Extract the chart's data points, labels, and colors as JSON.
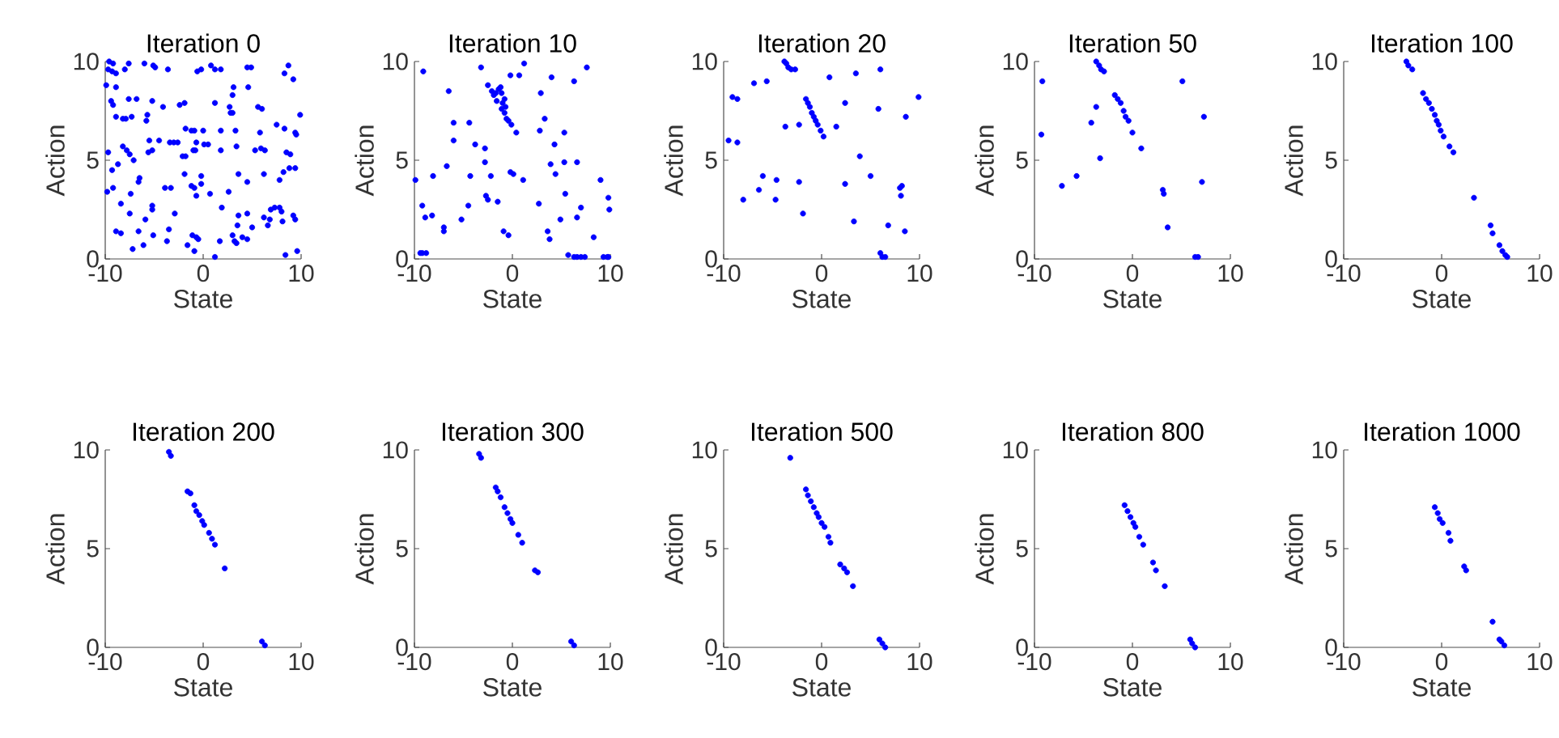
{
  "chart_data": [
    {
      "type": "scatter",
      "title": "Iteration 0",
      "xlabel": "State",
      "ylabel": "Action",
      "color": "#0000ff",
      "marker": "circle",
      "xlim": [
        -10,
        10
      ],
      "ylim": [
        0,
        10
      ],
      "xticks": [
        -10,
        0,
        10
      ],
      "yticks": [
        0,
        5,
        10
      ],
      "x": [
        -9.6,
        -9.2,
        -9.7,
        -9.3,
        -8.9,
        -8.0,
        -7.6,
        -6.0,
        -5.1,
        -4.9,
        -3.6,
        -0.6,
        -0.2,
        0.8,
        1.2,
        1.8,
        4.5,
        4.9,
        8.3,
        8.7,
        9.2,
        -9.9,
        -8.9,
        3.1,
        4.6,
        -9.4,
        -9.2,
        -7.6,
        -6.8,
        -5.2,
        -4.1,
        -2.4,
        -1.9,
        1.2,
        2.7,
        2.8,
        3.0,
        5.6,
        6.0,
        7.5,
        8.3,
        9.9,
        -8.9,
        -8.2,
        -7.9,
        -7.3,
        -5.8,
        -5.7,
        3.0,
        -1.8,
        -1.2,
        -0.9,
        0,
        1.8,
        3.3,
        5.8,
        9.4,
        9.5,
        -5.5,
        -4.5,
        -3.4,
        -3.0,
        -2.6,
        -0.7,
        0.1,
        0.5,
        1.8,
        -0.8,
        -1.0,
        -2.1,
        -1.8,
        3.4,
        5.3,
        5.9,
        6.3,
        8.5,
        8.9,
        -9.7,
        -8.2,
        -7.8,
        -7.5,
        -7.1,
        -5.6,
        -5.2,
        -8.7,
        -9.3,
        8.8,
        9.4,
        -9.8,
        -9.2,
        -7.4,
        -6.5,
        -6.6,
        -3.9,
        -3.3,
        -1.9,
        -1.2,
        -0.9,
        -0.7,
        -0.2,
        -0.2,
        0.7,
        2.6,
        3.6,
        4.5,
        6.2,
        7.8,
        8.2,
        -8.4,
        -7.5,
        -5.9,
        -5.2,
        -5.2,
        -2.9,
        1.9,
        3.6,
        4.5,
        5.0,
        6.2,
        6.8,
        7.3,
        7.8,
        8.0,
        8.1,
        9.2,
        9.4,
        -8.9,
        -8.4,
        -6.6,
        -3.5,
        -1.1,
        -0.7,
        -0.5,
        3.0,
        3.5,
        4.0,
        4.5,
        3.2,
        3.4,
        -3.7,
        -5.1,
        -7.2,
        -6.1,
        -1.6,
        -0.9,
        1.2,
        8.4,
        9.6,
        1.7,
        6.6,
        6.9
      ],
      "values": [
        10.0,
        9.9,
        9.6,
        9.5,
        9.4,
        9.6,
        9.9,
        9.9,
        9.8,
        9.7,
        9.6,
        9.5,
        9.6,
        9.8,
        9.6,
        9.6,
        9.7,
        9.7,
        9.4,
        9.8,
        9.1,
        8.8,
        8.7,
        8.7,
        8.7,
        8.0,
        7.8,
        8.1,
        8.1,
        8.0,
        7.7,
        7.8,
        7.9,
        7.9,
        7.7,
        7.4,
        8.3,
        7.7,
        7.6,
        6.8,
        6.6,
        7.3,
        7.2,
        7.1,
        7.1,
        7.2,
        7.0,
        7.3,
        7.4,
        6.6,
        6.5,
        6.5,
        6.5,
        6.5,
        6.5,
        6.4,
        6.4,
        6.3,
        6.0,
        6.0,
        5.9,
        5.9,
        5.9,
        5.9,
        5.8,
        5.8,
        5.5,
        5.5,
        5.5,
        5.2,
        5.2,
        5.7,
        5.5,
        5.6,
        5.5,
        5.4,
        5.3,
        5.4,
        5.7,
        5.5,
        5.3,
        5.0,
        5.4,
        5.5,
        4.8,
        4.5,
        4.6,
        4.6,
        3.4,
        3.6,
        3.3,
        4.1,
        3.9,
        3.6,
        3.6,
        4.3,
        3.7,
        3.6,
        3.2,
        3.8,
        4.2,
        3.3,
        3.4,
        4.3,
        3.9,
        4.3,
        4.0,
        4.4,
        2.8,
        2.3,
        2.0,
        2.7,
        2.5,
        2.3,
        2.6,
        2.2,
        2.3,
        1.6,
        2.1,
        2.0,
        2.6,
        2.6,
        2.4,
        1.9,
        2.2,
        2.0,
        1.4,
        1.3,
        1.4,
        1.5,
        1.2,
        1.1,
        1.0,
        1.2,
        1.7,
        1.1,
        1.0,
        0.9,
        0.8,
        0.9,
        1.2,
        0.5,
        0.7,
        0.7,
        0.4,
        0.1,
        0.2,
        0.4,
        0.9,
        1.7,
        2.5
      ]
    },
    {
      "type": "scatter",
      "title": "Iteration 10",
      "xlabel": "State",
      "ylabel": "Action",
      "color": "#0000ff",
      "marker": "circle",
      "xlim": [
        -10,
        10
      ],
      "ylim": [
        0,
        10
      ],
      "xticks": [
        -10,
        0,
        10
      ],
      "yticks": [
        0,
        5,
        10
      ],
      "x": [
        -9.1,
        -9.2,
        -8.8,
        -9.4,
        -9.9,
        -9.2,
        -8.9,
        -8.2,
        -8.1,
        -7.0,
        -7.0,
        -6.7,
        -6.5,
        -6.0,
        -6.0,
        -5.2,
        -4.4,
        -4.3,
        -4.5,
        -3.8,
        -3.2,
        -2.8,
        -2.8,
        -2.7,
        -2.5,
        -2.2,
        -1.5,
        -0.9,
        -0.4,
        -0.2,
        0.1,
        -0.2,
        0.4,
        1.1,
        1.2,
        0.7,
        -2.5,
        -2.1,
        -1.9,
        -1.6,
        -1.4,
        -1.2,
        -1.1,
        -1.0,
        -0.8,
        -1.1,
        -0.8,
        -0.6,
        -0.4,
        -0.1,
        -1.7,
        -0.7,
        2.9,
        3.3,
        2.8,
        4.0,
        4.3,
        2.7,
        3.6,
        3.8,
        3.9,
        4.4,
        4.9,
        5.3,
        5.3,
        5.4,
        6.3,
        6.6,
        6.6,
        7.0,
        7.6,
        8.3,
        9.0,
        9.8,
        9.9,
        5.7,
        6.3,
        6.6,
        7.0,
        7.4,
        9.3,
        9.7,
        9.8
      ],
      "values": [
        9.5,
        0.3,
        0.3,
        0.3,
        4.0,
        2.7,
        2.1,
        2.2,
        4.2,
        1.6,
        1.4,
        4.7,
        8.5,
        6.9,
        6.0,
        2.0,
        6.9,
        4.2,
        2.7,
        5.8,
        9.7,
        5.6,
        4.9,
        3.2,
        3.0,
        4.2,
        2.9,
        1.4,
        1.2,
        4.4,
        4.3,
        9.3,
        6.4,
        4.0,
        9.9,
        9.3,
        8.8,
        8.5,
        8.3,
        8.0,
        8.6,
        8.7,
        8.4,
        7.9,
        8.1,
        7.6,
        7.4,
        7.1,
        7.0,
        6.8,
        8.4,
        7.7,
        8.4,
        7.1,
        6.5,
        9.2,
        5.8,
        2.8,
        1.4,
        1.0,
        4.8,
        4.3,
        2.0,
        6.4,
        4.9,
        3.3,
        9.0,
        4.9,
        2.1,
        2.6,
        9.7,
        1.1,
        4.0,
        3.1,
        2.5,
        0.2,
        0.1,
        0.1,
        0.1,
        0.1,
        0.1,
        0.1,
        0.1
      ]
    },
    {
      "type": "scatter",
      "title": "Iteration 20",
      "xlabel": "State",
      "ylabel": "Action",
      "color": "#0000ff",
      "marker": "circle",
      "xlim": [
        -10,
        10
      ],
      "ylim": [
        0,
        10
      ],
      "xticks": [
        -10,
        0,
        10
      ],
      "yticks": [
        0,
        5,
        10
      ],
      "x": [
        -9.5,
        -9.1,
        -8.6,
        -8.6,
        -8.0,
        -6.9,
        -5.6,
        -6.4,
        -6.0,
        -4.7,
        -4.6,
        -3.7,
        -3.8,
        -3.6,
        -3.4,
        -3.1,
        -2.7,
        -2.3,
        -2.3,
        -1.9,
        -1.6,
        -1.4,
        -1.2,
        -1.0,
        -0.8,
        -0.6,
        -0.4,
        -0.1,
        0.2,
        0.8,
        1.5,
        2.4,
        2.4,
        3.3,
        3.5,
        3.9,
        5.0,
        5.8,
        6.0,
        6.0,
        6.2,
        6.5,
        6.8,
        8.0,
        8.2,
        8.1,
        8.5,
        8.6,
        9.9
      ],
      "values": [
        6.0,
        8.2,
        8.1,
        5.9,
        3.0,
        8.9,
        9.0,
        3.5,
        4.2,
        3.0,
        4.0,
        6.7,
        10.0,
        9.9,
        9.7,
        9.6,
        9.6,
        6.8,
        3.9,
        2.3,
        8.1,
        7.9,
        7.7,
        7.4,
        7.2,
        7.0,
        6.8,
        6.5,
        6.2,
        9.2,
        6.7,
        7.9,
        3.8,
        1.9,
        9.4,
        5.2,
        4.2,
        7.6,
        9.6,
        0.3,
        0.1,
        0.1,
        1.7,
        3.6,
        3.7,
        3.2,
        1.4,
        7.2,
        8.2
      ]
    },
    {
      "type": "scatter",
      "title": "Iteration 50",
      "xlabel": "State",
      "ylabel": "Action",
      "color": "#0000ff",
      "marker": "circle",
      "xlim": [
        -10,
        10
      ],
      "ylim": [
        0,
        10
      ],
      "xticks": [
        -10,
        0,
        10
      ],
      "yticks": [
        0,
        5,
        10
      ],
      "x": [
        -9.2,
        -9.3,
        -7.2,
        -5.7,
        -4.2,
        -3.7,
        -3.3,
        -3.7,
        -3.4,
        -3.2,
        -2.9,
        -1.8,
        -1.5,
        -1.2,
        -0.9,
        -0.7,
        -0.4,
        0.0,
        0.9,
        3.1,
        3.2,
        3.6,
        5.1,
        6.4,
        6.7,
        7.1,
        7.3
      ],
      "values": [
        9.0,
        6.3,
        3.7,
        4.2,
        6.9,
        7.7,
        5.1,
        10.0,
        9.8,
        9.6,
        9.5,
        8.3,
        8.1,
        7.9,
        7.5,
        7.2,
        7.0,
        6.4,
        5.6,
        3.5,
        3.3,
        1.6,
        9.0,
        0.1,
        0.1,
        3.9,
        7.2
      ]
    },
    {
      "type": "scatter",
      "title": "Iteration 100",
      "xlabel": "State",
      "ylabel": "Action",
      "color": "#0000ff",
      "marker": "circle",
      "xlim": [
        -10,
        10
      ],
      "ylim": [
        0,
        10
      ],
      "xticks": [
        -10,
        0,
        10
      ],
      "yticks": [
        0,
        5,
        10
      ],
      "x": [
        -3.6,
        -3.4,
        -3.0,
        -1.9,
        -1.6,
        -1.3,
        -1.0,
        -0.7,
        -0.5,
        -0.3,
        -0.1,
        0.2,
        0.8,
        1.2,
        3.3,
        5.0,
        5.2,
        5.9,
        6.2,
        6.5,
        6.7
      ],
      "values": [
        10.0,
        9.8,
        9.6,
        8.4,
        8.1,
        7.9,
        7.6,
        7.3,
        7.0,
        6.8,
        6.5,
        6.2,
        5.7,
        5.4,
        3.1,
        1.7,
        1.3,
        0.7,
        0.4,
        0.2,
        0.1
      ]
    },
    {
      "type": "scatter",
      "title": "Iteration 200",
      "xlabel": "State",
      "ylabel": "Action",
      "color": "#0000ff",
      "marker": "circle",
      "xlim": [
        -10,
        10
      ],
      "ylim": [
        0,
        10
      ],
      "xticks": [
        -10,
        0,
        10
      ],
      "yticks": [
        0,
        5,
        10
      ],
      "x": [
        -3.5,
        -3.3,
        -1.6,
        -1.3,
        -0.9,
        -0.7,
        -0.4,
        -0.1,
        0.1,
        0.6,
        0.9,
        1.2,
        2.2,
        6.0,
        6.3
      ],
      "values": [
        9.9,
        9.7,
        7.9,
        7.8,
        7.2,
        6.9,
        6.7,
        6.4,
        6.2,
        5.8,
        5.5,
        5.2,
        4.0,
        0.3,
        0.1
      ]
    },
    {
      "type": "scatter",
      "title": "Iteration 300",
      "xlabel": "State",
      "ylabel": "Action",
      "color": "#0000ff",
      "marker": "circle",
      "xlim": [
        -10,
        10
      ],
      "ylim": [
        0,
        10
      ],
      "xticks": [
        -10,
        0,
        10
      ],
      "yticks": [
        0,
        5,
        10
      ],
      "x": [
        -3.4,
        -3.2,
        -1.7,
        -1.5,
        -1.2,
        -0.8,
        -0.5,
        -0.2,
        0.0,
        0.6,
        1.0,
        2.3,
        2.6,
        6.0,
        6.3
      ],
      "values": [
        9.8,
        9.6,
        8.1,
        7.9,
        7.6,
        7.1,
        6.8,
        6.5,
        6.3,
        5.7,
        5.3,
        3.9,
        3.8,
        0.3,
        0.1
      ]
    },
    {
      "type": "scatter",
      "title": "Iteration 500",
      "xlabel": "State",
      "ylabel": "Action",
      "color": "#0000ff",
      "marker": "circle",
      "xlim": [
        -10,
        10
      ],
      "ylim": [
        0,
        10
      ],
      "xticks": [
        -10,
        0,
        10
      ],
      "yticks": [
        0,
        5,
        10
      ],
      "x": [
        -3.2,
        -1.6,
        -1.4,
        -1.1,
        -0.8,
        -0.5,
        -0.3,
        0.0,
        0.3,
        0.7,
        0.9,
        1.9,
        2.3,
        2.6,
        3.2,
        5.9,
        6.2,
        6.5
      ],
      "values": [
        9.6,
        8.0,
        7.7,
        7.4,
        7.1,
        6.8,
        6.6,
        6.3,
        6.1,
        5.6,
        5.3,
        4.2,
        4.0,
        3.8,
        3.1,
        0.4,
        0.2,
        0.0
      ]
    },
    {
      "type": "scatter",
      "title": "Iteration 800",
      "xlabel": "State",
      "ylabel": "Action",
      "color": "#0000ff",
      "marker": "circle",
      "xlim": [
        -10,
        10
      ],
      "ylim": [
        0,
        10
      ],
      "xticks": [
        -10,
        0,
        10
      ],
      "yticks": [
        0,
        5,
        10
      ],
      "x": [
        -0.8,
        -0.5,
        -0.2,
        0.1,
        0.3,
        0.7,
        1.1,
        2.1,
        2.4,
        3.3,
        5.9,
        6.1,
        6.4
      ],
      "values": [
        7.2,
        6.9,
        6.6,
        6.3,
        6.1,
        5.6,
        5.2,
        4.3,
        3.9,
        3.1,
        0.4,
        0.2,
        0.0
      ]
    },
    {
      "type": "scatter",
      "title": "Iteration 1000",
      "xlabel": "State",
      "ylabel": "Action",
      "color": "#0000ff",
      "marker": "circle",
      "xlim": [
        -10,
        10
      ],
      "ylim": [
        0,
        10
      ],
      "xticks": [
        -10,
        0,
        10
      ],
      "yticks": [
        0,
        5,
        10
      ],
      "x": [
        -0.7,
        -0.4,
        -0.2,
        0.1,
        0.7,
        0.9,
        2.3,
        2.5,
        5.2,
        5.9,
        6.1,
        6.4
      ],
      "values": [
        7.1,
        6.8,
        6.5,
        6.3,
        5.8,
        5.4,
        4.1,
        3.9,
        1.3,
        0.4,
        0.3,
        0.1
      ]
    }
  ]
}
